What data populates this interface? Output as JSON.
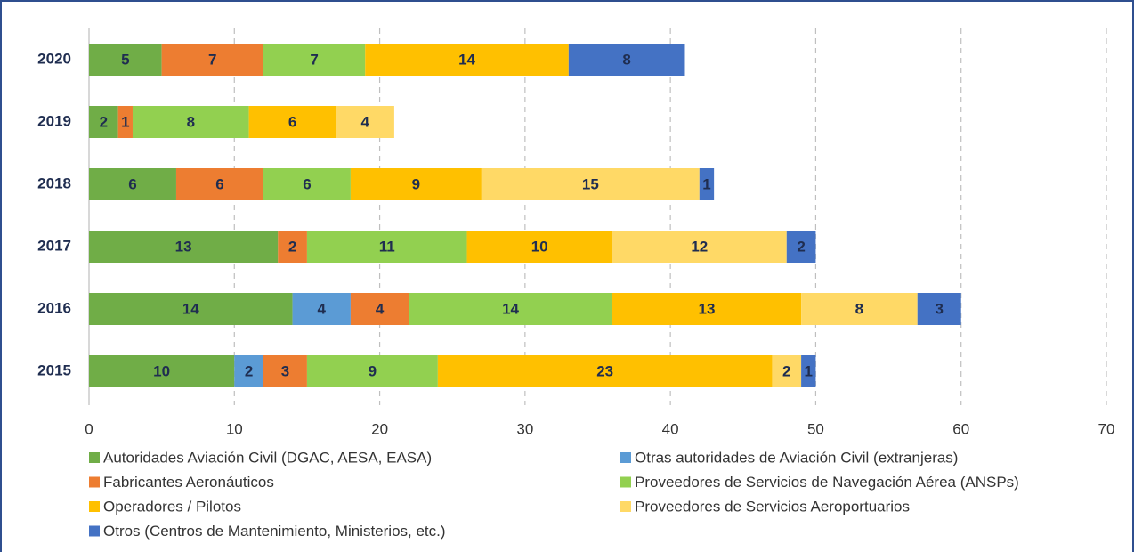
{
  "chart_data": {
    "type": "stacked-bar-horizontal",
    "categories": [
      "2020",
      "2019",
      "2018",
      "2017",
      "2016",
      "2015"
    ],
    "series": [
      {
        "name": "Autoridades Aviación Civil (DGAC, AESA, EASA)",
        "color": "#70ad47",
        "values": [
          5,
          2,
          6,
          13,
          14,
          10
        ]
      },
      {
        "name": "Otras autoridades de Aviación Civil (extranjeras)",
        "color": "#5b9bd5",
        "values": [
          null,
          null,
          null,
          null,
          4,
          2
        ]
      },
      {
        "name": "Fabricantes Aeronáuticos",
        "color": "#ed7d31",
        "values": [
          7,
          1,
          6,
          2,
          4,
          3
        ]
      },
      {
        "name": "Proveedores de Servicios de Navegación Aérea (ANSPs)",
        "color": "#92d050",
        "values": [
          7,
          8,
          6,
          11,
          14,
          9
        ]
      },
      {
        "name": "Operadores / Pilotos",
        "color": "#ffc000",
        "values": [
          14,
          6,
          9,
          10,
          13,
          23
        ]
      },
      {
        "name": "Proveedores de Servicios Aeroportuarios",
        "color": "#ffd966",
        "values": [
          null,
          4,
          15,
          12,
          8,
          2
        ]
      },
      {
        "name": "Otros (Centros de Mantenimiento, Ministerios, etc.)",
        "color": "#4472c4",
        "values": [
          8,
          null,
          1,
          2,
          3,
          1
        ]
      }
    ],
    "xlim": [
      0,
      70
    ],
    "xticks": [
      0,
      10,
      20,
      30,
      40,
      50,
      60,
      70
    ],
    "grid": true
  }
}
